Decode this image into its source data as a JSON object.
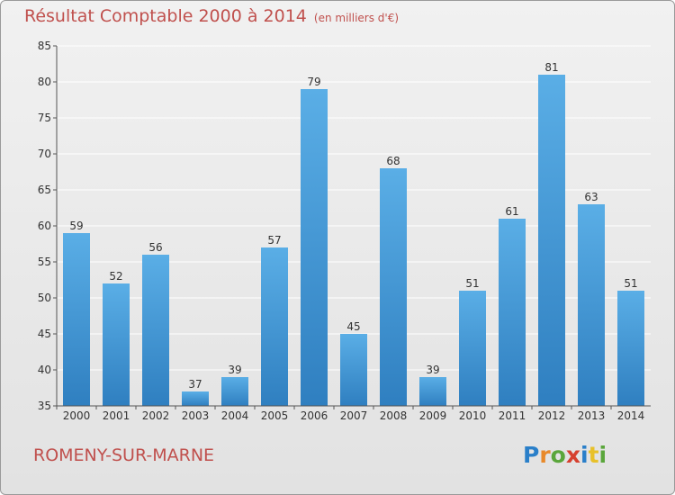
{
  "header": {
    "title": "Résultat Comptable 2000 à 2014",
    "subtitle": "(en milliers d'€)"
  },
  "footer": {
    "commune": "ROMENY-SUR-MARNE",
    "logo_letters": [
      "P",
      "r",
      "o",
      "x",
      "i",
      "t",
      "i"
    ]
  },
  "colors": {
    "bar_top": "#5aaee6",
    "bar_bottom": "#2f7fc0",
    "title": "#c0504d",
    "grid": "#ffffff"
  },
  "chart_data": {
    "type": "bar",
    "title": "Résultat Comptable 2000 à 2014",
    "subtitle": "(en milliers d'€)",
    "xlabel": "",
    "ylabel": "",
    "categories": [
      "2000",
      "2001",
      "2002",
      "2003",
      "2004",
      "2005",
      "2006",
      "2007",
      "2008",
      "2009",
      "2010",
      "2011",
      "2012",
      "2013",
      "2014"
    ],
    "values": [
      59,
      52,
      56,
      37,
      39,
      57,
      79,
      45,
      68,
      39,
      51,
      61,
      81,
      63,
      51
    ],
    "ylim": [
      35,
      85
    ],
    "yticks": [
      35,
      40,
      45,
      50,
      55,
      60,
      65,
      70,
      75,
      80,
      85
    ],
    "grid": true,
    "legend": "none"
  }
}
